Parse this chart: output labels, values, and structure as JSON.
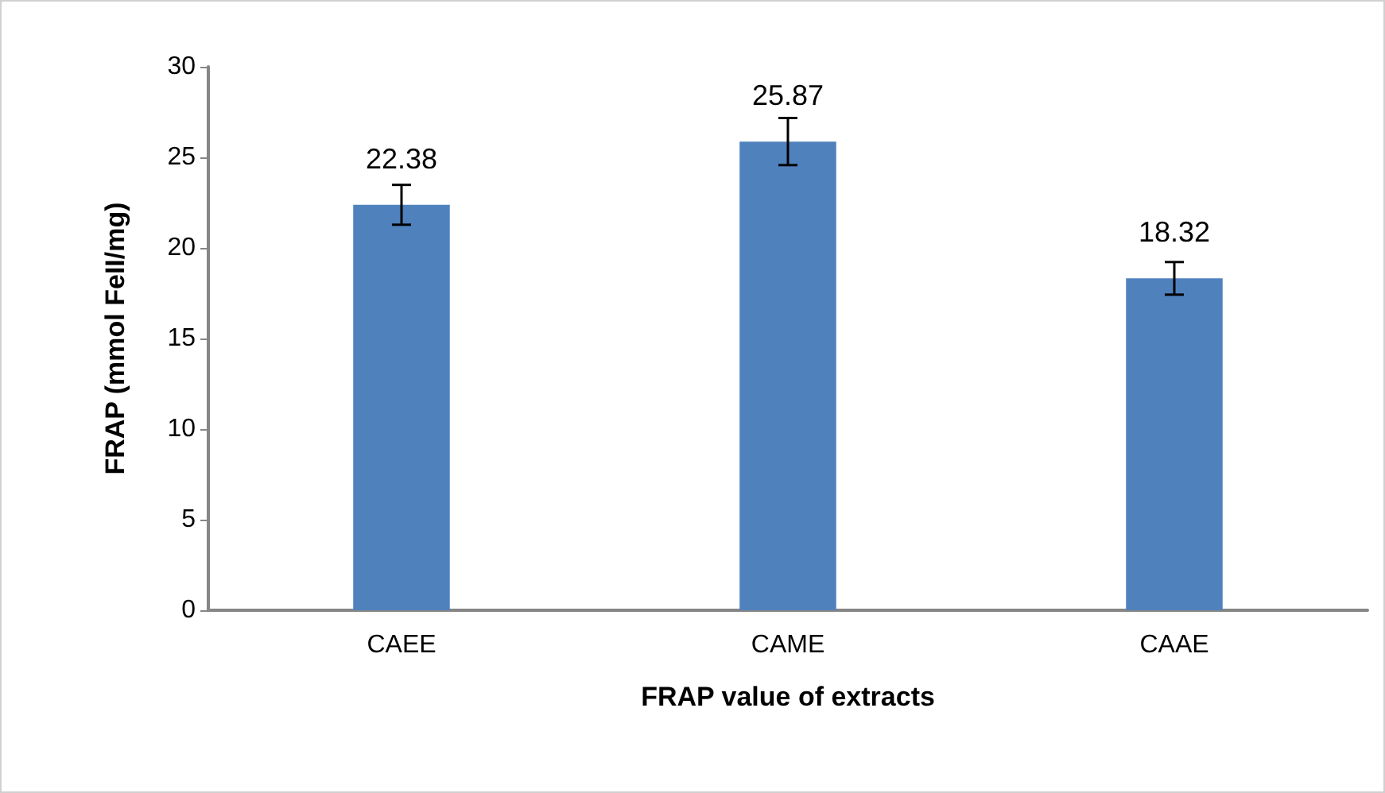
{
  "chart_data": {
    "type": "bar",
    "xlabel": "FRAP value of extracts",
    "ylabel": "FRAP (mmol FeII/mg)",
    "categories": [
      "CAEE",
      "CAME",
      "CAAE"
    ],
    "values": [
      22.38,
      25.87,
      18.32
    ],
    "errors": [
      1.1,
      1.3,
      0.9
    ],
    "color": "#4f81bd",
    "ylim": [
      0,
      30
    ],
    "yticks": [
      0,
      5,
      10,
      15,
      20,
      25,
      30
    ],
    "data_labels": true
  }
}
